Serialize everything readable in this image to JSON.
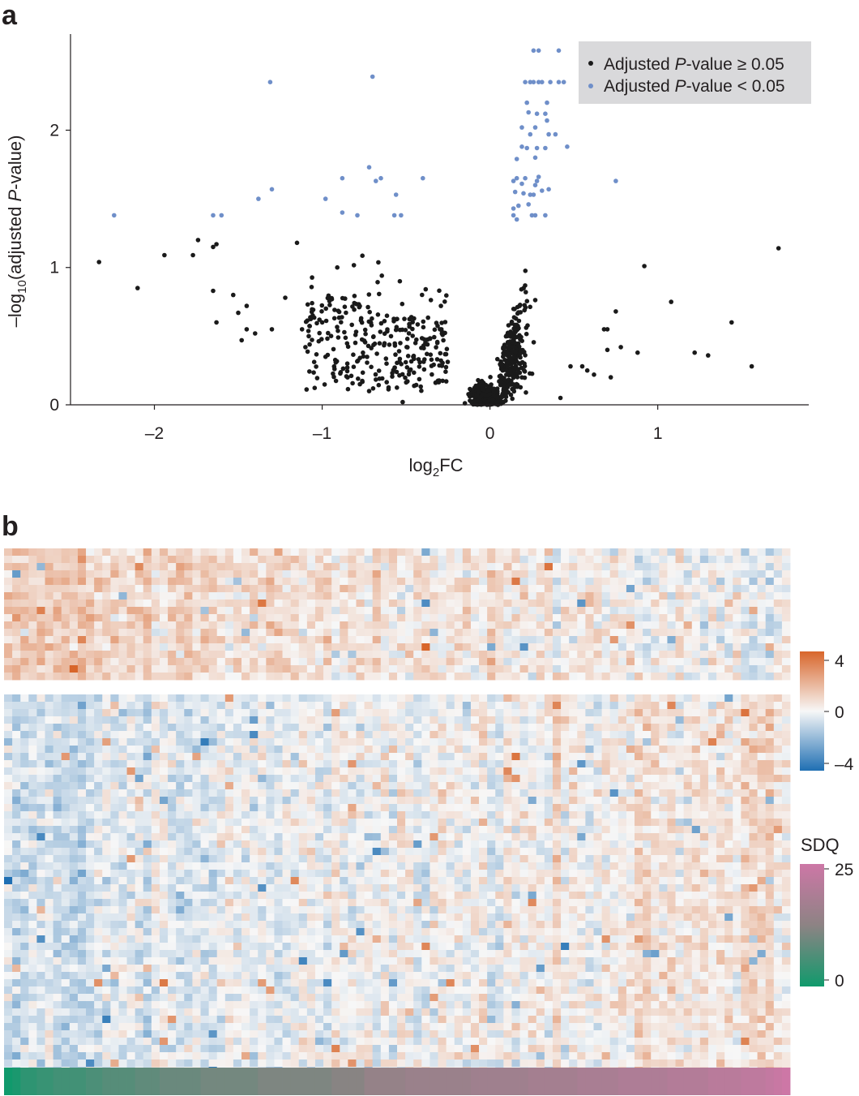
{
  "panels": {
    "a": "a",
    "b": "b"
  },
  "chart_data": [
    {
      "type": "scatter",
      "panel": "a",
      "xlabel_parts": {
        "base": "log",
        "sub": "2",
        "rest": "FC"
      },
      "ylabel_parts": {
        "pre": "–log",
        "sub": "10",
        "mid": "(adjusted ",
        "italic": "P",
        "post": "-value)"
      },
      "xlim": [
        -2.5,
        1.9
      ],
      "ylim": [
        0,
        2.7
      ],
      "xticks": [
        -2,
        -1,
        0,
        1
      ],
      "xtick_labels": [
        "–2",
        "–1",
        "0",
        "1"
      ],
      "yticks": [
        0,
        1,
        2
      ],
      "ytick_labels": [
        "0",
        "1",
        "2"
      ],
      "legend": {
        "position": "top-right",
        "background": "#d9d9db",
        "entries": [
          {
            "pre": "Adjusted ",
            "italic": "P",
            "post": "-value ≥ 0.05",
            "color": "#1a1a1a"
          },
          {
            "pre": "Adjusted ",
            "italic": "P",
            "post": "-value < 0.05",
            "color": "#6f8fc9"
          }
        ]
      },
      "colors": {
        "nonsignificant": "#1a1a1a",
        "significant": "#6f8fc9",
        "axis": "#231f20"
      },
      "significant_points": [
        [
          -2.24,
          1.38
        ],
        [
          -1.65,
          1.38
        ],
        [
          -1.6,
          1.38
        ],
        [
          -1.38,
          1.5
        ],
        [
          -1.3,
          1.57
        ],
        [
          -1.31,
          2.35
        ],
        [
          -0.98,
          1.5
        ],
        [
          -0.88,
          1.4
        ],
        [
          -0.88,
          1.65
        ],
        [
          -0.79,
          1.38
        ],
        [
          -0.72,
          1.73
        ],
        [
          -0.7,
          2.39
        ],
        [
          -0.68,
          1.63
        ],
        [
          -0.65,
          1.65
        ],
        [
          -0.57,
          1.38
        ],
        [
          -0.56,
          1.53
        ],
        [
          -0.53,
          1.38
        ],
        [
          -0.4,
          1.65
        ],
        [
          0.14,
          1.38
        ],
        [
          0.14,
          1.43
        ],
        [
          0.15,
          1.55
        ],
        [
          0.16,
          1.35
        ],
        [
          0.17,
          1.45
        ],
        [
          0.16,
          1.65
        ],
        [
          0.19,
          1.61
        ],
        [
          0.21,
          1.65
        ],
        [
          0.2,
          1.54
        ],
        [
          0.23,
          1.46
        ],
        [
          0.24,
          1.53
        ],
        [
          0.25,
          1.38
        ],
        [
          0.27,
          1.38
        ],
        [
          0.26,
          1.53
        ],
        [
          0.27,
          1.6
        ],
        [
          0.28,
          1.63
        ],
        [
          0.29,
          1.66
        ],
        [
          0.31,
          1.56
        ],
        [
          0.33,
          1.38
        ],
        [
          0.35,
          1.57
        ],
        [
          0.14,
          1.63
        ],
        [
          0.16,
          1.79
        ],
        [
          0.19,
          1.88
        ],
        [
          0.22,
          1.87
        ],
        [
          0.24,
          1.97
        ],
        [
          0.27,
          1.8
        ],
        [
          0.28,
          1.87
        ],
        [
          0.33,
          1.87
        ],
        [
          0.35,
          1.97
        ],
        [
          0.39,
          1.97
        ],
        [
          0.19,
          2.02
        ],
        [
          0.27,
          2.02
        ],
        [
          0.34,
          2.07
        ],
        [
          0.23,
          2.13
        ],
        [
          0.28,
          2.12
        ],
        [
          0.33,
          2.12
        ],
        [
          0.22,
          2.2
        ],
        [
          0.34,
          2.2
        ],
        [
          0.21,
          2.35
        ],
        [
          0.24,
          2.35
        ],
        [
          0.26,
          2.35
        ],
        [
          0.29,
          2.35
        ],
        [
          0.31,
          2.35
        ],
        [
          0.36,
          2.35
        ],
        [
          0.41,
          2.35
        ],
        [
          0.44,
          2.35
        ],
        [
          0.26,
          2.58
        ],
        [
          0.29,
          2.58
        ],
        [
          0.41,
          2.58
        ],
        [
          0.46,
          1.88
        ],
        [
          0.75,
          1.63
        ]
      ],
      "nonsignificant_outliers": [
        [
          -2.33,
          1.04
        ],
        [
          -2.1,
          0.85
        ],
        [
          -1.94,
          1.09
        ],
        [
          -1.77,
          1.09
        ],
        [
          -1.74,
          1.2
        ],
        [
          -1.65,
          1.15
        ],
        [
          -1.63,
          1.17
        ],
        [
          -1.65,
          0.83
        ],
        [
          -1.63,
          0.6
        ],
        [
          -1.53,
          0.8
        ],
        [
          -1.5,
          0.67
        ],
        [
          -1.48,
          0.47
        ],
        [
          -1.45,
          0.55
        ],
        [
          -1.4,
          0.52
        ],
        [
          -1.45,
          0.72
        ],
        [
          -1.3,
          0.55
        ],
        [
          -1.22,
          0.78
        ],
        [
          -1.15,
          1.18
        ],
        [
          -1.12,
          0.55
        ],
        [
          -1.1,
          0.42
        ],
        [
          -1.08,
          0.5
        ],
        [
          -1.06,
          0.74
        ],
        [
          -1.0,
          0.6
        ],
        [
          -0.98,
          0.35
        ],
        [
          0.78,
          0.42
        ],
        [
          0.88,
          0.38
        ],
        [
          0.92,
          1.01
        ],
        [
          1.08,
          0.75
        ],
        [
          1.22,
          0.38
        ],
        [
          1.3,
          0.36
        ],
        [
          1.44,
          0.6
        ],
        [
          1.56,
          0.28
        ],
        [
          1.72,
          1.14
        ],
        [
          0.75,
          0.68
        ],
        [
          0.7,
          0.55
        ],
        [
          0.48,
          0.28
        ],
        [
          0.55,
          0.28
        ],
        [
          0.58,
          0.25
        ],
        [
          0.62,
          0.22
        ],
        [
          0.68,
          0.55
        ],
        [
          0.7,
          0.4
        ],
        [
          0.72,
          0.2
        ],
        [
          -0.85,
          0.3
        ],
        [
          -0.72,
          0.1
        ],
        [
          -0.52,
          0.02
        ],
        [
          0.08,
          0.02
        ],
        [
          0.42,
          0.05
        ]
      ],
      "nonsignificant_cloud": {
        "approximate_count": 950,
        "description_ranges": {
          "left_wing_x": [
            -1.1,
            -0.25
          ],
          "left_wing_y": [
            0.05,
            1.1
          ],
          "center_x": [
            -0.25,
            0.1
          ],
          "center_y": [
            0.0,
            0.45
          ],
          "right_ridge_x": [
            0.05,
            0.45
          ],
          "right_ridge_y": [
            0.0,
            1.3
          ]
        }
      }
    },
    {
      "type": "heatmap",
      "panel": "b",
      "rows": 70,
      "columns": 96,
      "row_groups": [
        {
          "rows": 18
        },
        {
          "rows": 52
        }
      ],
      "column_groups": [
        {
          "columns": 44,
          "sdq": "low"
        },
        {
          "columns": 52,
          "sdq": "high"
        }
      ],
      "color_scale": {
        "min": -4,
        "max": 4,
        "ticks": [
          "4",
          "0",
          "–4"
        ],
        "colors": {
          "low": "#1f6fb3",
          "mid": "#f7f7f7",
          "high": "#d8662b"
        }
      },
      "annotation_bar": {
        "label": "SDQ",
        "min": 0,
        "max": 25,
        "ticks": [
          "25",
          "0"
        ],
        "colors": {
          "low": "#109a6c",
          "mid": "#8d8384",
          "high": "#cd77a6"
        },
        "segment_values": [
          0,
          1,
          3,
          3,
          4,
          4,
          5,
          5,
          5,
          5,
          6,
          6,
          7,
          7,
          7,
          7,
          8,
          8,
          8,
          9,
          9,
          9,
          9,
          9,
          10,
          10,
          10,
          10,
          10,
          10,
          10,
          11,
          11,
          11,
          11,
          11,
          11,
          11,
          11,
          11,
          12,
          12,
          12,
          12,
          14,
          14,
          14,
          14,
          14,
          15,
          15,
          15,
          15,
          15,
          15,
          15,
          15,
          16,
          16,
          16,
          16,
          16,
          16,
          16,
          17,
          17,
          17,
          17,
          17,
          17,
          18,
          18,
          18,
          18,
          18,
          19,
          19,
          19,
          19,
          19,
          19,
          20,
          20,
          20,
          20,
          20,
          21,
          21,
          21,
          21,
          22,
          22,
          22,
          23,
          24,
          25
        ]
      }
    }
  ]
}
